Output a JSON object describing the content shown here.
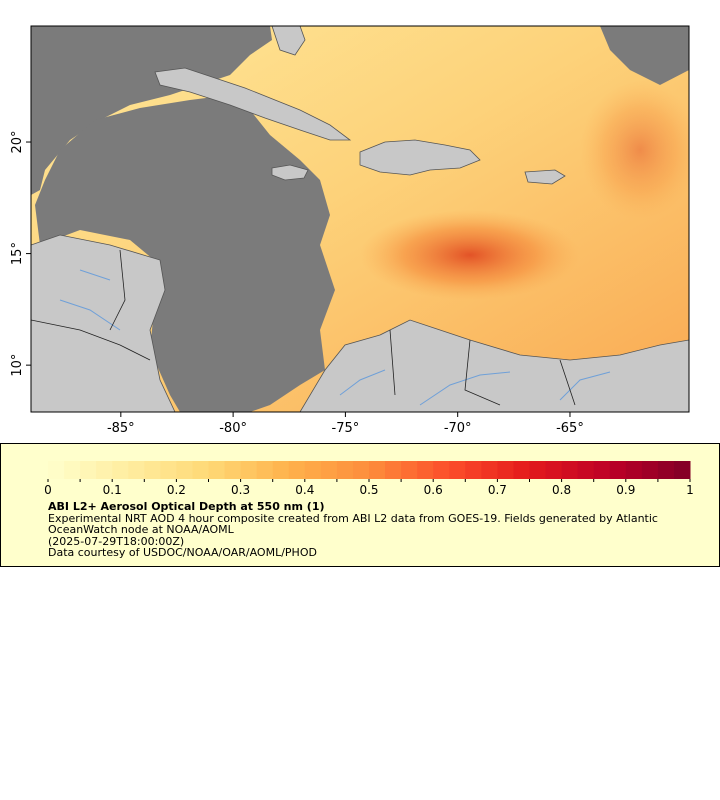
{
  "map": {
    "lon_range": [
      -89,
      -59.7
    ],
    "lat_range": [
      7.9,
      25.2
    ],
    "lon_ticks": [
      {
        "value": -85,
        "label": "-85°"
      },
      {
        "value": -80,
        "label": "-80°"
      },
      {
        "value": -75,
        "label": "-75°"
      },
      {
        "value": -70,
        "label": "-70°"
      },
      {
        "value": -65,
        "label": "-65°"
      }
    ],
    "lat_ticks": [
      {
        "value": 10,
        "label": "10°"
      },
      {
        "value": 15,
        "label": "15°"
      },
      {
        "value": 20,
        "label": "20°"
      }
    ],
    "colors": {
      "no_data_ocean": "#7b7b7b",
      "land": "#c8c8c8",
      "coast": "#555555",
      "rivers": "#6fa0d8",
      "borders": "#222222"
    }
  },
  "legend": {
    "title": "ABI L2+ Aerosol Optical Depth at 550 nm (1)",
    "lines": [
      "Experimental NRT AOD 4 hour composite created from ABI L2 data from GOES-19. Fields generated by Atlantic OceanWatch node at NOAA/AOML",
      "(2025-07-29T18:00:00Z)",
      "Data courtesy of USDOC/NOAA/OAR/AOML/PHOD"
    ],
    "scale_min": 0,
    "scale_max": 1,
    "tick_labels": [
      "0",
      "0.1",
      "0.2",
      "0.3",
      "0.4",
      "0.5",
      "0.6",
      "0.7",
      "0.8",
      "0.9",
      "1"
    ],
    "palette": [
      "#ffffcc",
      "#ffeda0",
      "#fed976",
      "#feb24c",
      "#fd8d3c",
      "#fc4e2a",
      "#e31a1c",
      "#bd0026",
      "#800026"
    ]
  }
}
